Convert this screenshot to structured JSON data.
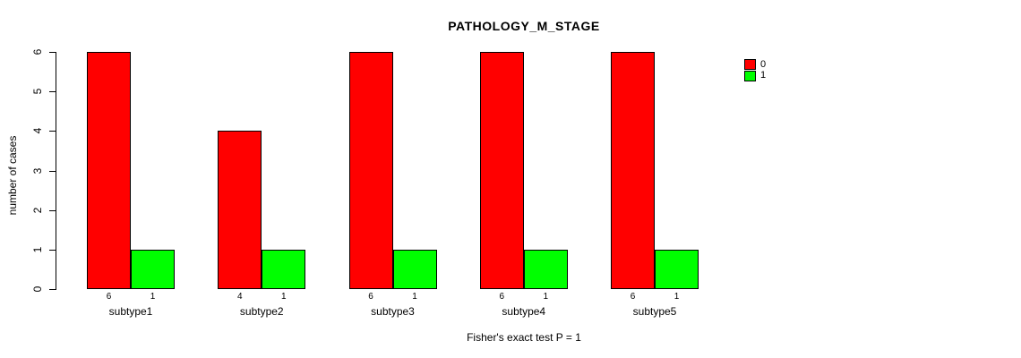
{
  "title": "PATHOLOGY_M_STAGE",
  "caption": "Fisher's exact test P = 1",
  "colors": {
    "series0": "#FF0000",
    "series1": "#00FF00",
    "axis": "#000000",
    "background": "#FFFFFF"
  },
  "legend": {
    "entries": [
      {
        "label": "0",
        "color": "#FF0000"
      },
      {
        "label": "1",
        "color": "#00FF00"
      }
    ],
    "position": "top-right"
  },
  "chart_data": {
    "type": "bar",
    "title": "PATHOLOGY_M_STAGE",
    "subtitle": "",
    "xlabel": "Fisher's exact test P = 1",
    "ylabel": "number of cases",
    "categories": [
      "subtype1",
      "subtype2",
      "subtype3",
      "subtype4",
      "subtype5"
    ],
    "series": [
      {
        "name": "0",
        "color": "#FF0000",
        "values": [
          6,
          4,
          6,
          6,
          6
        ]
      },
      {
        "name": "1",
        "color": "#00FF00",
        "values": [
          1,
          1,
          1,
          1,
          1
        ]
      }
    ],
    "bar_count_labels": [
      [
        "6",
        "1"
      ],
      [
        "4",
        "1"
      ],
      [
        "6",
        "1"
      ],
      [
        "6",
        "1"
      ],
      [
        "6",
        "1"
      ]
    ],
    "yticks": [
      0,
      1,
      2,
      3,
      4,
      5,
      6
    ],
    "ylim": [
      0,
      6
    ],
    "grid": false,
    "legend_position": "top-right",
    "bar_style": "grouped, black 1px outline, bars within a group touching"
  }
}
